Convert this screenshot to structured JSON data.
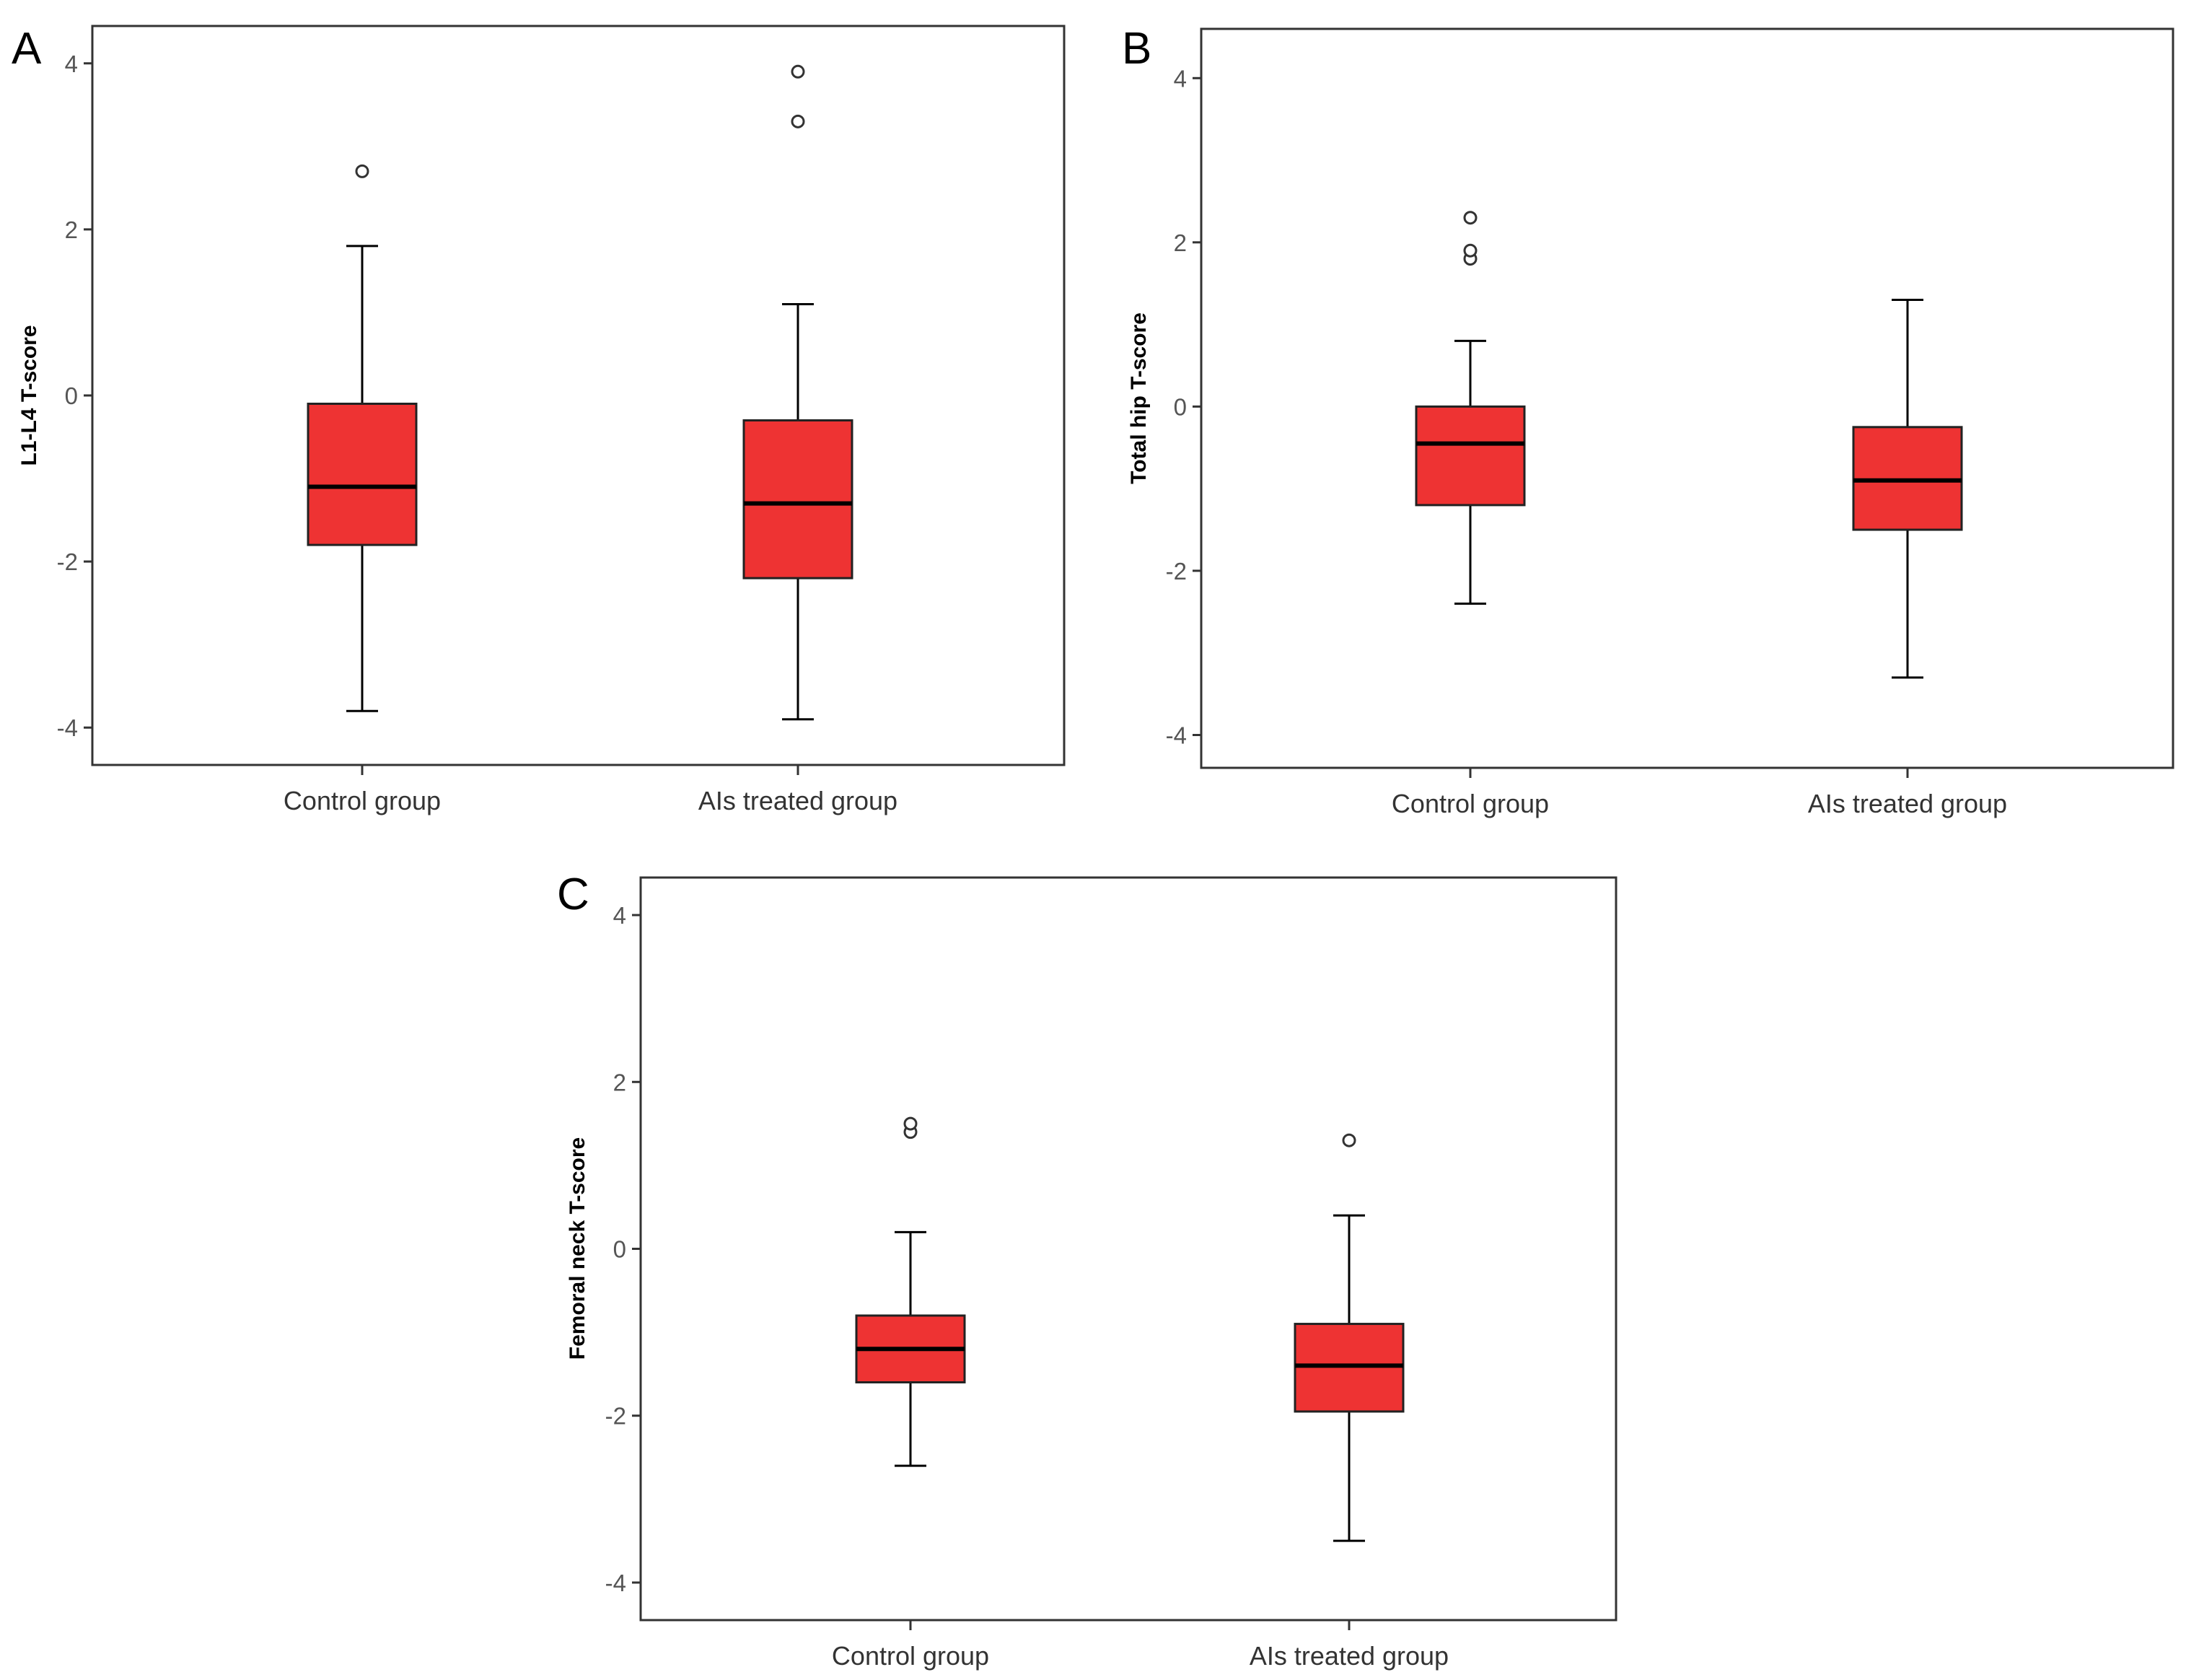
{
  "chart_data": [
    {
      "type": "box",
      "panel_letter": "A",
      "ylabel": "L1-L4 T-score",
      "ylim": [
        -4.45,
        4.45
      ],
      "yticks": [
        "-4",
        "-2",
        "0",
        "2",
        "4"
      ],
      "box_color": "#ee3333",
      "categories": [
        "Control group",
        "AIs treated group"
      ],
      "boxes": [
        {
          "category": "Control group",
          "whisker_low": -3.8,
          "q1": -1.8,
          "median": -1.1,
          "q3": -0.1,
          "whisker_high": 1.8,
          "outliers": [
            2.7
          ]
        },
        {
          "category": "AIs treated group",
          "whisker_low": -3.9,
          "q1": -2.2,
          "median": -1.3,
          "q3": -0.3,
          "whisker_high": 1.1,
          "outliers": [
            3.3,
            3.9
          ]
        }
      ]
    },
    {
      "type": "box",
      "panel_letter": "B",
      "ylabel": "Total hip T-score",
      "ylim": [
        -4.4,
        4.6
      ],
      "yticks": [
        "-4",
        "-2",
        "0",
        "2",
        "4"
      ],
      "box_color": "#ee3333",
      "categories": [
        "Control group",
        "AIs treated group"
      ],
      "boxes": [
        {
          "category": "Control group",
          "whisker_low": -2.4,
          "q1": -1.2,
          "median": -0.45,
          "q3": 0.0,
          "whisker_high": 0.8,
          "outliers": [
            1.8,
            1.9,
            2.3
          ]
        },
        {
          "category": "AIs treated group",
          "whisker_low": -3.3,
          "q1": -1.5,
          "median": -0.9,
          "q3": -0.25,
          "whisker_high": 1.3,
          "outliers": []
        }
      ]
    },
    {
      "type": "box",
      "panel_letter": "C",
      "ylabel": "Femoral neck T-score",
      "ylim": [
        -4.45,
        4.45
      ],
      "yticks": [
        "-4",
        "-2",
        "0",
        "2",
        "4"
      ],
      "box_color": "#ee3333",
      "categories": [
        "Control group",
        "AIs treated group"
      ],
      "boxes": [
        {
          "category": "Control group",
          "whisker_low": -2.6,
          "q1": -1.6,
          "median": -1.2,
          "q3": -0.8,
          "whisker_high": 0.2,
          "outliers": [
            1.4,
            1.5
          ]
        },
        {
          "category": "AIs treated group",
          "whisker_low": -3.5,
          "q1": -1.95,
          "median": -1.4,
          "q3": -0.9,
          "whisker_high": 0.4,
          "outliers": [
            1.3
          ]
        }
      ]
    }
  ]
}
